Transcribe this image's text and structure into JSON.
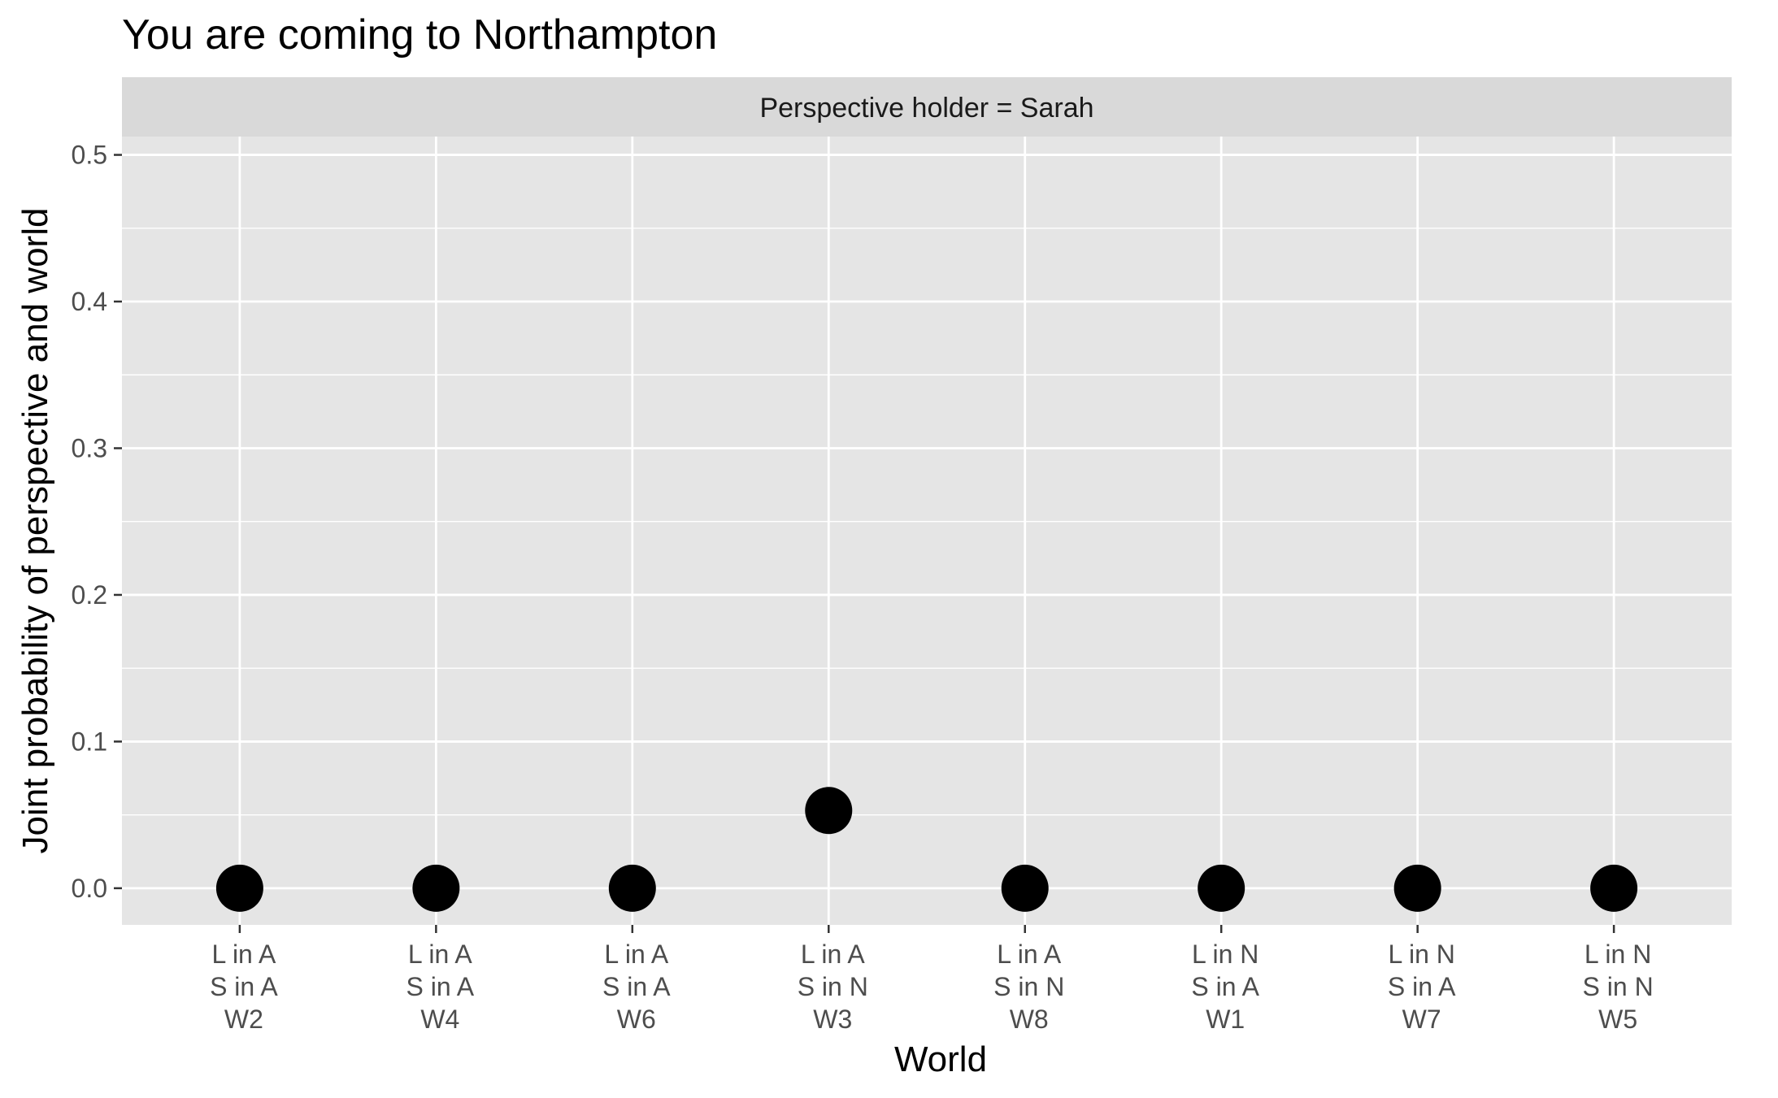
{
  "chart_data": {
    "type": "scatter",
    "title": "You are coming to Northampton",
    "facet_label": "Perspective holder = Sarah",
    "xlabel": "World",
    "ylabel": "Joint probability of perspective and world",
    "categories": [
      [
        "L in A",
        "S in A",
        "W2"
      ],
      [
        "L in A",
        "S in A",
        "W4"
      ],
      [
        "L in A",
        "S in A",
        "W6"
      ],
      [
        "L in A",
        "S in N",
        "W3"
      ],
      [
        "L in A",
        "S in N",
        "W8"
      ],
      [
        "L in N",
        "S in A",
        "W1"
      ],
      [
        "L in N",
        "S in A",
        "W7"
      ],
      [
        "L in N",
        "S in N",
        "W5"
      ]
    ],
    "values": [
      0.0,
      0.0,
      0.0,
      0.053,
      0.0,
      0.0,
      0.0,
      0.0
    ],
    "ylim": [
      -0.025,
      0.5125
    ],
    "yticks": [
      0.0,
      0.1,
      0.2,
      0.3,
      0.4,
      0.5
    ],
    "ytick_labels": [
      "0.0",
      "0.1",
      "0.2",
      "0.3",
      "0.4",
      "0.5"
    ],
    "grid": true,
    "colors": {
      "panel": "#e5e5e5",
      "strip": "#d9d9d9",
      "grid": "#ffffff",
      "point": "#000000",
      "tick": "#333333"
    }
  }
}
